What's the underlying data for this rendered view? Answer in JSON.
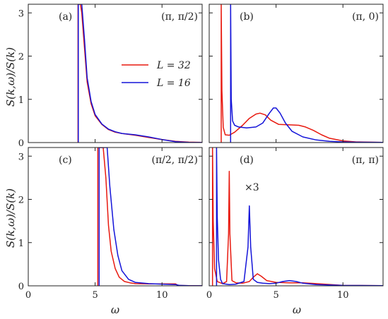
{
  "figure": {
    "ylabel": "S(k,ω)/S(k)",
    "xlabel": "ω",
    "xticks": [
      "0",
      "5",
      "10"
    ],
    "yticks": [
      "0",
      "1",
      "2",
      "3"
    ],
    "legend": [
      {
        "label": "L = 32",
        "color": "#e8190f"
      },
      {
        "label": "L = 16",
        "color": "#1414d9"
      }
    ]
  },
  "chart_data": [
    {
      "type": "line",
      "panel": "(a)",
      "k": "(π, π/2)",
      "xlim": [
        0,
        13
      ],
      "ylim": [
        0,
        3.2
      ],
      "series": [
        {
          "name": "L = 32",
          "color": "#e8190f",
          "x": [
            3.72,
            3.72,
            3.8,
            3.9,
            4.0,
            4.2,
            4.4,
            4.7,
            5.0,
            5.5,
            6.0,
            6.5,
            7.0,
            8.0,
            9.0,
            10.0,
            11.0,
            12.0,
            13.0
          ],
          "y": [
            0,
            3.2,
            3.2,
            3.2,
            3.0,
            2.2,
            1.4,
            0.9,
            0.62,
            0.42,
            0.3,
            0.24,
            0.21,
            0.17,
            0.12,
            0.07,
            0.03,
            0.01,
            0.005
          ]
        },
        {
          "name": "L = 16",
          "color": "#1414d9",
          "x": [
            3.74,
            3.74,
            3.8,
            3.9,
            4.0,
            4.2,
            4.4,
            4.7,
            5.0,
            5.5,
            6.0,
            6.5,
            7.0,
            8.0,
            9.0,
            10.0,
            11.0,
            12.0,
            13.0
          ],
          "y": [
            0,
            3.2,
            3.2,
            3.2,
            3.2,
            2.4,
            1.5,
            0.95,
            0.65,
            0.43,
            0.31,
            0.25,
            0.21,
            0.18,
            0.13,
            0.07,
            0.02,
            0.005,
            0.002
          ]
        }
      ]
    },
    {
      "type": "line",
      "panel": "(b)",
      "k": "(π, 0)",
      "xlim": [
        0,
        13
      ],
      "ylim": [
        0,
        3.2
      ],
      "series": [
        {
          "name": "L = 32",
          "color": "#e8190f",
          "x": [
            0.9,
            0.9,
            0.95,
            1.05,
            1.2,
            1.5,
            1.9,
            2.5,
            3.0,
            3.5,
            3.8,
            4.2,
            4.6,
            5.2,
            6.0,
            6.7,
            7.2,
            7.8,
            8.4,
            9.0,
            10.0,
            11.0,
            13.0
          ],
          "y": [
            0,
            3.2,
            1.2,
            0.35,
            0.18,
            0.17,
            0.24,
            0.4,
            0.56,
            0.66,
            0.68,
            0.64,
            0.52,
            0.42,
            0.41,
            0.4,
            0.36,
            0.28,
            0.18,
            0.1,
            0.04,
            0.015,
            0.005
          ]
        },
        {
          "name": "L = 16",
          "color": "#1414d9",
          "x": [
            1.6,
            1.6,
            1.65,
            1.75,
            1.9,
            2.2,
            2.8,
            3.5,
            4.0,
            4.5,
            4.8,
            5.0,
            5.3,
            5.7,
            6.2,
            7.0,
            8.0,
            9.0,
            10.0,
            11.0,
            13.0
          ],
          "y": [
            0,
            3.2,
            1.0,
            0.5,
            0.4,
            0.36,
            0.34,
            0.36,
            0.45,
            0.68,
            0.8,
            0.8,
            0.68,
            0.45,
            0.26,
            0.13,
            0.06,
            0.03,
            0.015,
            0.008,
            0.004
          ]
        }
      ]
    },
    {
      "type": "line",
      "panel": "(c)",
      "k": "(π/2, π/2)",
      "xlim": [
        0,
        13
      ],
      "ylim": [
        0,
        3.2
      ],
      "series": [
        {
          "name": "L = 32",
          "color": "#e8190f",
          "x": [
            5.2,
            5.2,
            5.4,
            5.6,
            5.8,
            6.0,
            6.2,
            6.5,
            6.8,
            7.2,
            7.6,
            8.0,
            9.0,
            10.0,
            11.0,
            11.2,
            12.0,
            13.0
          ],
          "y": [
            0,
            3.2,
            3.2,
            3.2,
            2.5,
            1.4,
            0.8,
            0.4,
            0.2,
            0.1,
            0.07,
            0.05,
            0.045,
            0.045,
            0.045,
            0.01,
            0.005,
            0.002
          ]
        },
        {
          "name": "L = 16",
          "color": "#1414d9",
          "x": [
            5.3,
            5.3,
            5.5,
            5.7,
            5.9,
            6.1,
            6.4,
            6.7,
            7.0,
            7.5,
            8.0,
            9.0,
            10.0,
            11.0,
            11.3,
            12.0,
            13.0
          ],
          "y": [
            0,
            3.2,
            3.2,
            3.2,
            3.2,
            2.3,
            1.3,
            0.7,
            0.35,
            0.15,
            0.08,
            0.05,
            0.04,
            0.03,
            0.01,
            0.004,
            0.002
          ]
        }
      ]
    },
    {
      "type": "line",
      "panel": "(d)",
      "k": "(π, π)",
      "annotation": "×3",
      "xlim": [
        0,
        13
      ],
      "ylim": [
        0,
        3.2
      ],
      "series": [
        {
          "name": "L = 32",
          "color": "#e8190f",
          "x": [
            0.25,
            0.25,
            0.3,
            0.4,
            0.6,
            1.0,
            1.3,
            1.45,
            1.5,
            1.55,
            1.7,
            2.0,
            2.5,
            3.0,
            3.3,
            3.6,
            3.9,
            4.3,
            5.0,
            6.0,
            7.0,
            8.0,
            10.0,
            13.0
          ],
          "y": [
            0,
            3.2,
            1.5,
            0.4,
            0.1,
            0.05,
            0.1,
            1.2,
            2.65,
            1.2,
            0.12,
            0.07,
            0.06,
            0.1,
            0.2,
            0.28,
            0.22,
            0.12,
            0.08,
            0.07,
            0.07,
            0.05,
            0.01,
            0.005
          ]
        },
        {
          "name": "L = 16",
          "color": "#1414d9",
          "x": [
            0.55,
            0.55,
            0.6,
            0.7,
            0.85,
            1.0,
            1.5,
            2.0,
            2.6,
            2.9,
            3.0,
            3.1,
            3.3,
            3.6,
            4.0,
            4.5,
            5.0,
            5.5,
            6.0,
            6.5,
            7.0,
            8.0,
            10.0,
            13.0
          ],
          "y": [
            0,
            3.2,
            1.6,
            0.6,
            0.15,
            0.05,
            0.03,
            0.04,
            0.1,
            0.9,
            1.85,
            0.9,
            0.15,
            0.08,
            0.06,
            0.05,
            0.06,
            0.1,
            0.12,
            0.1,
            0.06,
            0.03,
            0.01,
            0.005
          ]
        }
      ]
    }
  ]
}
